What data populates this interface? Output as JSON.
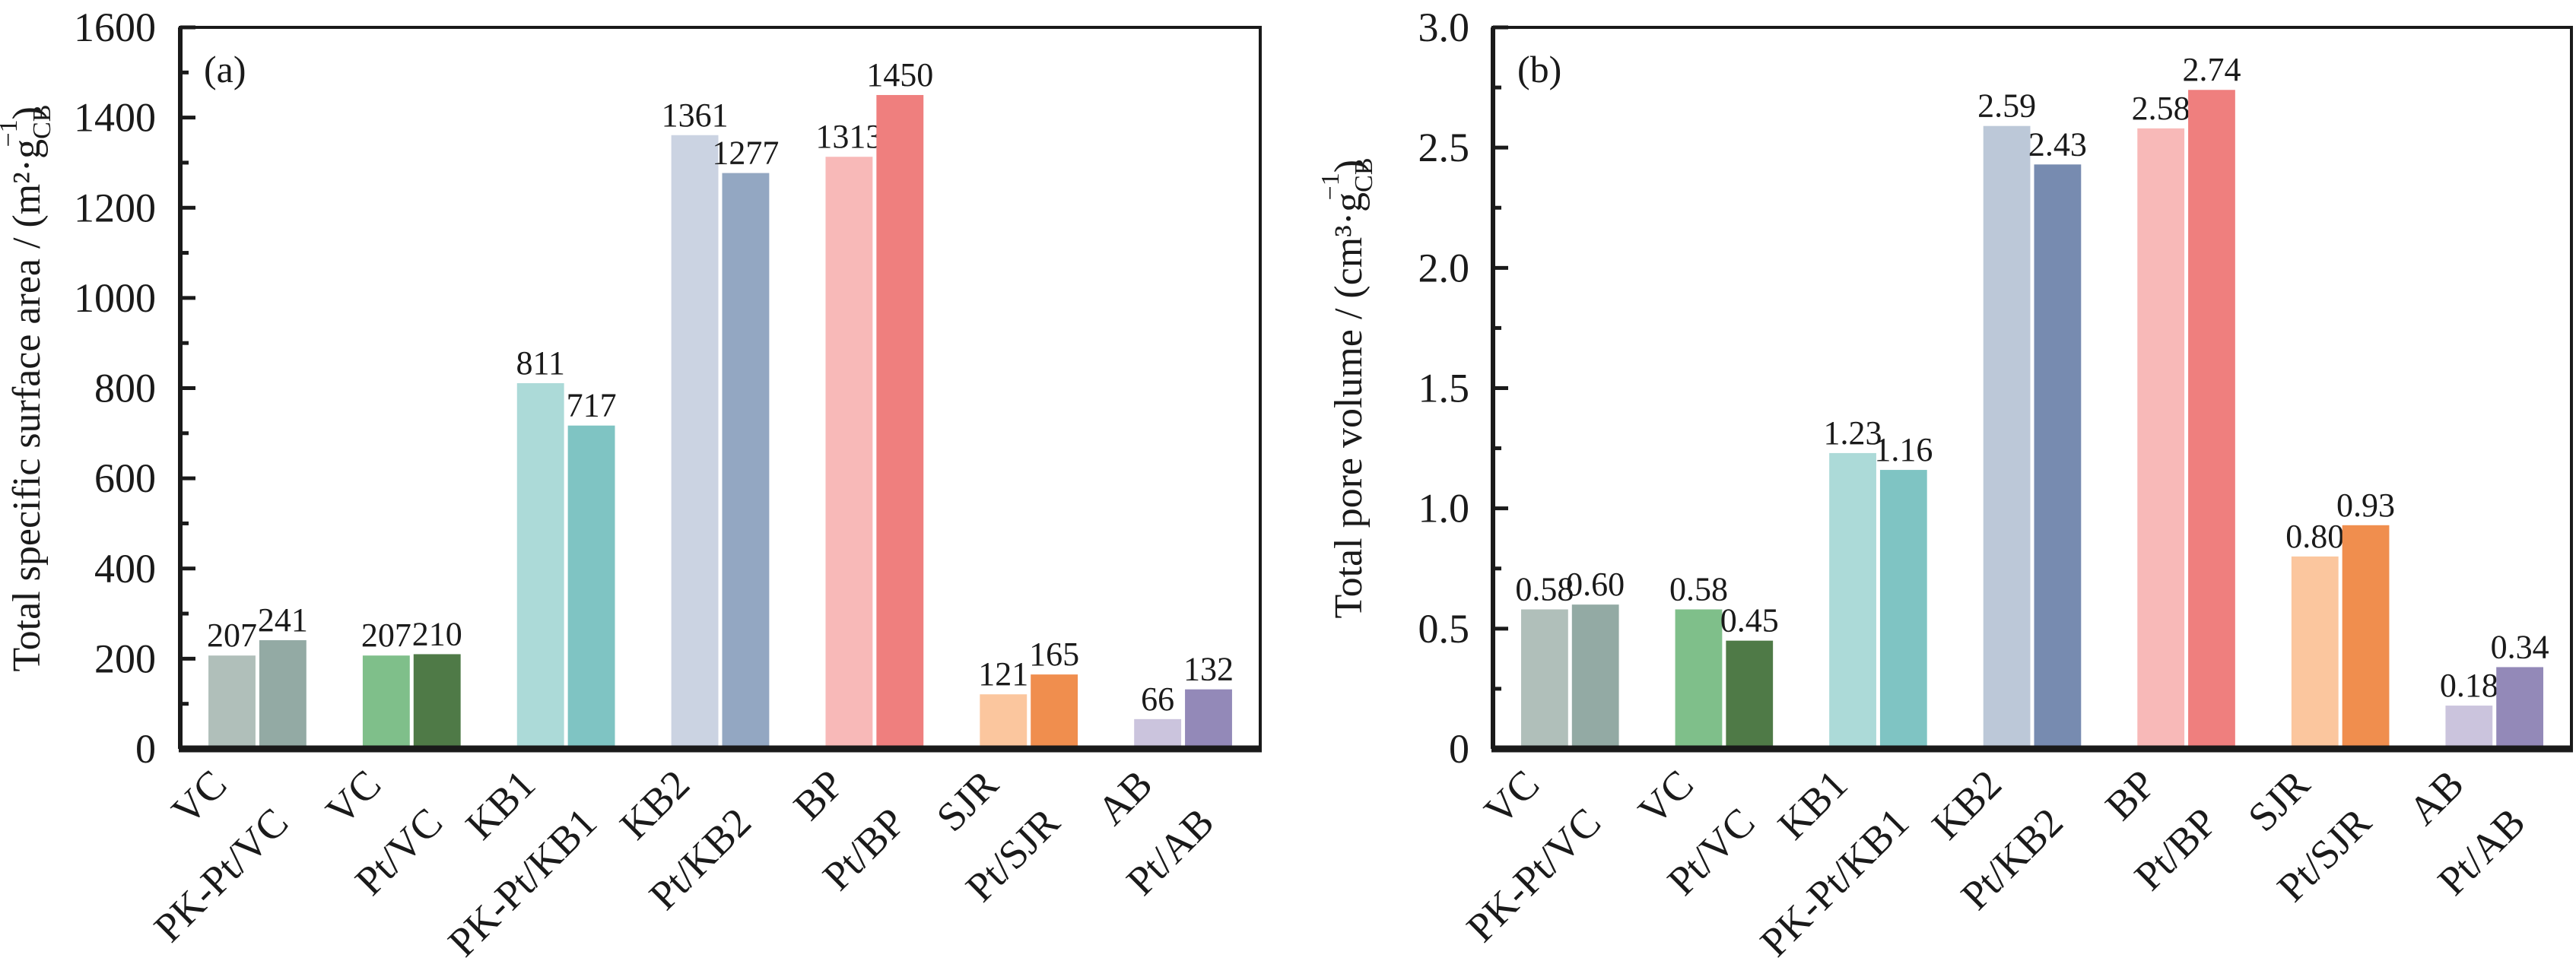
{
  "chart_data": [
    {
      "type": "bar",
      "panel": "(a)",
      "ylabel": "Total specific surface area / (m²·g",
      "ylabel_sub": "CB",
      "ylabel_sup": "−1",
      "ylabel_close": ")",
      "ylim": [
        0,
        1600
      ],
      "yticks": [
        0,
        200,
        400,
        600,
        800,
        1000,
        1200,
        1400,
        1600
      ],
      "ytick_labels": [
        "0",
        "200",
        "400",
        "600",
        "800",
        "1000",
        "1200",
        "1400",
        "1600"
      ],
      "categories": [
        "VC",
        "PK-Pt/VC",
        "VC",
        "Pt/VC",
        "KB1",
        "PK-Pt/KB1",
        "KB2",
        "Pt/KB2",
        "BP",
        "Pt/BP",
        "SJR",
        "Pt/SJR",
        "AB",
        "Pt/AB"
      ],
      "values": [
        207,
        241,
        207,
        210,
        811,
        717,
        1361,
        1277,
        1313,
        1450,
        121,
        165,
        66,
        132
      ],
      "value_labels": [
        "207",
        "241",
        "207",
        "210",
        "811",
        "717",
        "1361",
        "1277",
        "1313",
        "1450",
        "121",
        "165",
        "66",
        "132"
      ],
      "colors": [
        "#b0bfba",
        "#93aaa4",
        "#7fbf8a",
        "#4f7a47",
        "#acdad8",
        "#7fc4c3",
        "#cbd3e2",
        "#93a7c2",
        "#f8b9b8",
        "#ef7f7e",
        "#fbc69e",
        "#f08e4e",
        "#cbc4dd",
        "#9389b8"
      ]
    },
    {
      "type": "bar",
      "panel": "(b)",
      "ylabel": "Total pore volume / (cm³·g",
      "ylabel_sub": "CB",
      "ylabel_sup": "−1",
      "ylabel_close": ")",
      "ylim": [
        0,
        3.0
      ],
      "yticks": [
        0,
        0.5,
        1.0,
        1.5,
        2.0,
        2.5,
        3.0
      ],
      "ytick_labels": [
        "0",
        "0.5",
        "1.0",
        "1.5",
        "2.0",
        "2.5",
        "3.0"
      ],
      "categories": [
        "VC",
        "PK-Pt/VC",
        "VC",
        "Pt/VC",
        "KB1",
        "PK-Pt/KB1",
        "KB2",
        "Pt/KB2",
        "BP",
        "Pt/BP",
        "SJR",
        "Pt/SJR",
        "AB",
        "Pt/AB"
      ],
      "values": [
        0.58,
        0.6,
        0.58,
        0.45,
        1.23,
        1.16,
        2.59,
        2.43,
        2.58,
        2.74,
        0.8,
        0.93,
        0.18,
        0.34
      ],
      "value_labels": [
        "0.58",
        "0.60",
        "0.58",
        "0.45",
        "1.23",
        "1.16",
        "2.59",
        "2.43",
        "2.58",
        "2.74",
        "0.80",
        "0.93",
        "0.18",
        "0.34"
      ],
      "colors": [
        "#b0bfba",
        "#93aaa4",
        "#7fbf8a",
        "#4f7a47",
        "#acdad8",
        "#7fc4c3",
        "#bcc8d8",
        "#778bb0",
        "#f8b9b8",
        "#ef7f7e",
        "#fbc69e",
        "#f08e4e",
        "#cbc4dd",
        "#9389b8"
      ]
    }
  ]
}
